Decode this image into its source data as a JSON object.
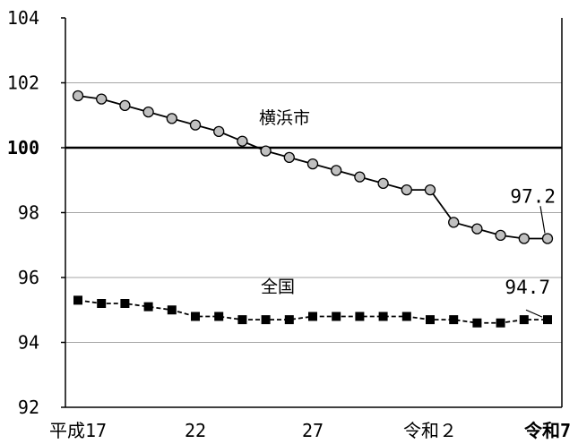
{
  "chart_data": {
    "type": "line",
    "title": "",
    "xlabel": "",
    "ylabel": "",
    "ylim": [
      92,
      104
    ],
    "yticks": [
      92,
      94,
      96,
      98,
      100,
      102,
      104
    ],
    "reference_line": 100,
    "grid": true,
    "x": [
      "H17",
      "H18",
      "H19",
      "H20",
      "H21",
      "H22",
      "H23",
      "H24",
      "H25",
      "H26",
      "H27",
      "H28",
      "H29",
      "H30",
      "R1",
      "R2",
      "R3",
      "R4",
      "R5",
      "R6",
      "R7"
    ],
    "x_tick_labels": [
      {
        "index": 0,
        "label": "平成17",
        "bold": false
      },
      {
        "index": 5,
        "label": "22",
        "bold": false
      },
      {
        "index": 10,
        "label": "27",
        "bold": false
      },
      {
        "index": 15,
        "label": "令和２",
        "bold": false
      },
      {
        "index": 20,
        "label": "令和7",
        "bold": true
      }
    ],
    "series": [
      {
        "name": "横浜市",
        "marker": "circle",
        "line_style": "solid",
        "color": "#000000",
        "marker_fill": "#c0c0c0",
        "values": [
          101.6,
          101.5,
          101.3,
          101.1,
          100.9,
          100.7,
          100.5,
          100.2,
          99.9,
          99.7,
          99.5,
          99.3,
          99.1,
          98.9,
          98.7,
          98.7,
          97.7,
          97.5,
          97.3,
          97.2,
          97.2
        ],
        "end_label": "97.2"
      },
      {
        "name": "全国",
        "marker": "square",
        "line_style": "dashed",
        "color": "#000000",
        "marker_fill": "#000000",
        "values": [
          95.3,
          95.2,
          95.2,
          95.1,
          95.0,
          94.8,
          94.8,
          94.7,
          94.7,
          94.7,
          94.8,
          94.8,
          94.8,
          94.8,
          94.8,
          94.7,
          94.7,
          94.6,
          94.6,
          94.7,
          94.7
        ],
        "end_label": "94.7"
      }
    ]
  }
}
